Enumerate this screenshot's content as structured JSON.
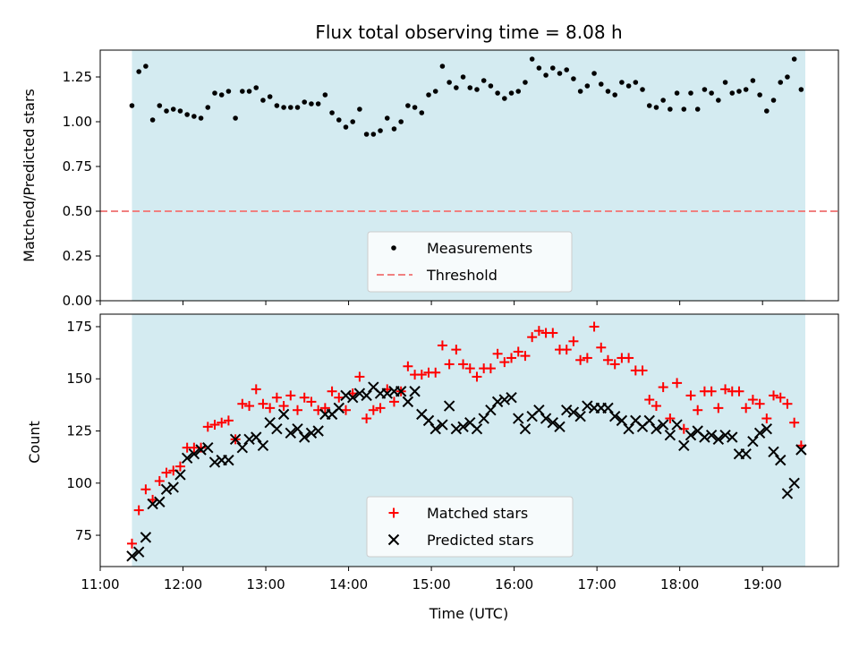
{
  "chart_data": [
    {
      "type": "scatter",
      "title": "Flux total observing time = 8.08 h",
      "xlabel": "",
      "ylabel": "Matched/Predicted stars",
      "ylim": [
        0,
        1.4
      ],
      "yticks": [
        "0.00",
        "0.25",
        "0.50",
        "0.75",
        "1.00",
        "1.25"
      ],
      "ytick_values": [
        0,
        0.25,
        0.5,
        0.75,
        1.0,
        1.25
      ],
      "legend_placement": "lower-center",
      "highlight_color": "#d4ebf1",
      "series": [
        {
          "name": "Measurements",
          "color": "#000000",
          "marker": "dot",
          "x": [
            "11:23",
            "11:28",
            "11:33",
            "11:38",
            "11:43",
            "11:48",
            "11:53",
            "11:58",
            "12:03",
            "12:08",
            "12:13",
            "12:18",
            "12:23",
            "12:28",
            "12:33",
            "12:38",
            "12:43",
            "12:48",
            "12:53",
            "12:58",
            "13:03",
            "13:08",
            "13:13",
            "13:18",
            "13:23",
            "13:28",
            "13:33",
            "13:38",
            "13:43",
            "13:48",
            "13:53",
            "13:58",
            "14:03",
            "14:08",
            "14:13",
            "14:18",
            "14:23",
            "14:28",
            "14:33",
            "14:38",
            "14:43",
            "14:48",
            "14:53",
            "14:58",
            "15:03",
            "15:08",
            "15:13",
            "15:18",
            "15:23",
            "15:28",
            "15:33",
            "15:38",
            "15:43",
            "15:48",
            "15:53",
            "15:58",
            "16:03",
            "16:08",
            "16:13",
            "16:18",
            "16:23",
            "16:28",
            "16:33",
            "16:38",
            "16:43",
            "16:48",
            "16:53",
            "16:58",
            "17:03",
            "17:08",
            "17:13",
            "17:18",
            "17:23",
            "17:28",
            "17:33",
            "17:38",
            "17:43",
            "17:48",
            "17:53",
            "17:58",
            "18:03",
            "18:08",
            "18:13",
            "18:18",
            "18:23",
            "18:28",
            "18:33",
            "18:38",
            "18:43",
            "18:48",
            "18:53",
            "18:58",
            "19:03",
            "19:08",
            "19:13",
            "19:18",
            "19:23",
            "19:28"
          ],
          "y": [
            1.09,
            1.28,
            1.31,
            1.01,
            1.09,
            1.06,
            1.07,
            1.06,
            1.04,
            1.03,
            1.02,
            1.08,
            1.16,
            1.15,
            1.17,
            1.02,
            1.17,
            1.17,
            1.19,
            1.12,
            1.14,
            1.09,
            1.08,
            1.08,
            1.08,
            1.11,
            1.1,
            1.1,
            1.15,
            1.05,
            1.01,
            0.97,
            1.0,
            1.07,
            0.93,
            0.93,
            0.95,
            1.02,
            0.96,
            1.0,
            1.09,
            1.08,
            1.05,
            1.15,
            1.17,
            1.31,
            1.22,
            1.19,
            1.25,
            1.19,
            1.18,
            1.23,
            1.2,
            1.16,
            1.13,
            1.16,
            1.17,
            1.22,
            1.35,
            1.3,
            1.26,
            1.3,
            1.27,
            1.29,
            1.24,
            1.17,
            1.2,
            1.27,
            1.21,
            1.17,
            1.15,
            1.22,
            1.2,
            1.22,
            1.18,
            1.09,
            1.08,
            1.12,
            1.07,
            1.16,
            1.07,
            1.16,
            1.07,
            1.18,
            1.16,
            1.12,
            1.22,
            1.16,
            1.17,
            1.18,
            1.23,
            1.15,
            1.06,
            1.12,
            1.22,
            1.25,
            1.35,
            1.18
          ]
        },
        {
          "name": "Threshold",
          "color": "#f08080",
          "style": "dashed",
          "y_value": 0.5
        }
      ]
    },
    {
      "type": "scatter",
      "title": "",
      "xlabel": "Time (UTC)",
      "ylabel": "Count",
      "ylim": [
        60,
        181
      ],
      "yticks": [
        "75",
        "100",
        "125",
        "150",
        "175"
      ],
      "ytick_values": [
        75,
        100,
        125,
        150,
        175
      ],
      "xlim": [
        "11:00",
        "19:55"
      ],
      "xticks": [
        "11:00",
        "12:00",
        "13:00",
        "14:00",
        "15:00",
        "16:00",
        "17:00",
        "18:00",
        "19:00"
      ],
      "highlight_range": [
        "11:23",
        "19:31"
      ],
      "legend_placement": "lower-center",
      "series": [
        {
          "name": "Matched stars",
          "color": "#ff0000",
          "marker": "plus",
          "x": [
            "11:23",
            "11:28",
            "11:33",
            "11:38",
            "11:43",
            "11:48",
            "11:53",
            "11:58",
            "12:03",
            "12:08",
            "12:13",
            "12:18",
            "12:23",
            "12:28",
            "12:33",
            "12:38",
            "12:43",
            "12:48",
            "12:53",
            "12:58",
            "13:03",
            "13:08",
            "13:13",
            "13:18",
            "13:23",
            "13:28",
            "13:33",
            "13:38",
            "13:43",
            "13:48",
            "13:53",
            "13:58",
            "14:03",
            "14:08",
            "14:13",
            "14:18",
            "14:23",
            "14:28",
            "14:33",
            "14:38",
            "14:43",
            "14:48",
            "14:53",
            "14:58",
            "15:03",
            "15:08",
            "15:13",
            "15:18",
            "15:23",
            "15:28",
            "15:33",
            "15:38",
            "15:43",
            "15:48",
            "15:53",
            "15:58",
            "16:03",
            "16:08",
            "16:13",
            "16:18",
            "16:23",
            "16:28",
            "16:33",
            "16:38",
            "16:43",
            "16:48",
            "16:53",
            "16:58",
            "17:03",
            "17:08",
            "17:13",
            "17:18",
            "17:23",
            "17:28",
            "17:33",
            "17:38",
            "17:43",
            "17:48",
            "17:53",
            "17:58",
            "18:03",
            "18:08",
            "18:13",
            "18:18",
            "18:23",
            "18:28",
            "18:33",
            "18:38",
            "18:43",
            "18:48",
            "18:53",
            "18:58",
            "19:03",
            "19:08",
            "19:13",
            "19:18",
            "19:23",
            "19:28"
          ],
          "y": [
            71,
            87,
            97,
            92,
            101,
            105,
            106,
            108,
            117,
            117,
            117,
            127,
            128,
            129,
            130,
            121,
            138,
            137,
            145,
            138,
            136,
            141,
            137,
            142,
            135,
            141,
            139,
            135,
            136,
            144,
            141,
            135,
            143,
            151,
            131,
            135,
            136,
            145,
            139,
            144,
            156,
            152,
            152,
            153,
            153,
            166,
            157,
            164,
            157,
            155,
            151,
            155,
            155,
            162,
            158,
            160,
            163,
            161,
            170,
            173,
            172,
            172,
            164,
            164,
            168,
            159,
            160,
            175,
            165,
            159,
            157,
            160,
            160,
            154,
            154,
            140,
            137,
            146,
            131,
            148,
            126,
            142,
            135,
            144,
            144,
            136,
            145,
            144,
            144,
            136,
            140,
            138,
            131,
            142,
            141,
            138,
            129,
            118
          ]
        },
        {
          "name": "Predicted stars",
          "color": "#000000",
          "marker": "cross",
          "x": [
            "11:23",
            "11:28",
            "11:33",
            "11:38",
            "11:43",
            "11:48",
            "11:53",
            "11:58",
            "12:03",
            "12:08",
            "12:13",
            "12:18",
            "12:23",
            "12:28",
            "12:33",
            "12:38",
            "12:43",
            "12:48",
            "12:53",
            "12:58",
            "13:03",
            "13:08",
            "13:13",
            "13:18",
            "13:23",
            "13:28",
            "13:33",
            "13:38",
            "13:43",
            "13:48",
            "13:53",
            "13:58",
            "14:03",
            "14:08",
            "14:13",
            "14:18",
            "14:23",
            "14:28",
            "14:33",
            "14:38",
            "14:43",
            "14:48",
            "14:53",
            "14:58",
            "15:03",
            "15:08",
            "15:13",
            "15:18",
            "15:23",
            "15:28",
            "15:33",
            "15:38",
            "15:43",
            "15:48",
            "15:53",
            "15:58",
            "16:03",
            "16:08",
            "16:13",
            "16:18",
            "16:23",
            "16:28",
            "16:33",
            "16:38",
            "16:43",
            "16:48",
            "16:53",
            "16:58",
            "17:03",
            "17:08",
            "17:13",
            "17:18",
            "17:23",
            "17:28",
            "17:33",
            "17:38",
            "17:43",
            "17:48",
            "17:53",
            "17:58",
            "18:03",
            "18:08",
            "18:13",
            "18:18",
            "18:23",
            "18:28",
            "18:33",
            "18:38",
            "18:43",
            "18:48",
            "18:53",
            "18:58",
            "19:03",
            "19:08",
            "19:13",
            "19:18",
            "19:23",
            "19:28"
          ],
          "y": [
            65,
            67,
            74,
            90,
            91,
            97,
            98,
            104,
            112,
            114,
            116,
            117,
            110,
            111,
            111,
            121,
            117,
            121,
            122,
            118,
            129,
            126,
            133,
            124,
            126,
            122,
            124,
            125,
            133,
            133,
            136,
            142,
            141,
            143,
            142,
            146,
            143,
            143,
            144,
            144,
            139,
            144,
            133,
            130,
            126,
            128,
            137,
            126,
            127,
            129,
            126,
            131,
            135,
            139,
            140,
            141,
            131,
            126,
            132,
            135,
            131,
            129,
            127,
            135,
            134,
            132,
            137,
            136,
            136,
            136,
            132,
            130,
            126,
            130,
            127,
            130,
            126,
            128,
            123,
            128,
            118,
            123,
            125,
            122,
            123,
            121,
            123,
            122,
            114,
            114,
            120,
            124,
            126,
            115,
            111,
            95,
            100,
            116
          ]
        }
      ]
    }
  ]
}
